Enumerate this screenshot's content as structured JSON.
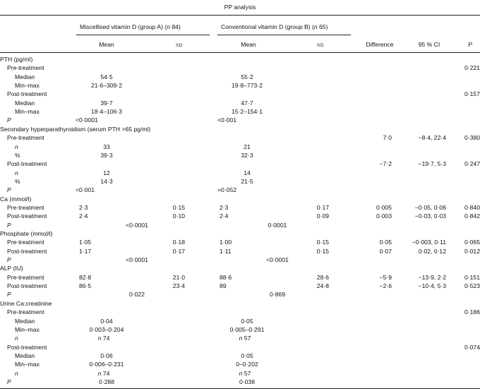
{
  "header": {
    "title": "PP analysis",
    "group_a": "Miscellised vitamin D (group A) (n 84)",
    "group_b": "Conventional vitamin D (group B) (n 65)",
    "mean": "Mean",
    "sd": "SD",
    "difference": "Difference",
    "ci": "95 % CI",
    "p": "P"
  },
  "rows": [
    {
      "label": "PTH (pg/ml)",
      "indent": 0
    },
    {
      "label": "Pre-treatment",
      "indent": 1,
      "p": "0·221"
    },
    {
      "label": "Median",
      "indent": 2,
      "a_center": "54·5",
      "b_center": "55·2"
    },
    {
      "label": "Min–max",
      "indent": 2,
      "a_center": "21·6–309·2",
      "b_center": "19·8–773·2"
    },
    {
      "label": "Post-treatment",
      "indent": 1,
      "p": "0·157"
    },
    {
      "label": "Median",
      "indent": 2,
      "a_center": "39·7",
      "b_center": "47·7"
    },
    {
      "label": "Min–max",
      "indent": 2,
      "a_center": "18·4–106·3",
      "b_center": "15·2–154·1"
    },
    {
      "label": "P",
      "indent": 1,
      "italic": true,
      "a_left": "<0·0001",
      "b_left": "<0·001"
    },
    {
      "label": "Secondary hyperparathyroidism (serum PTH >65 pg/ml)",
      "indent": 0
    },
    {
      "label": "Pre-treatment",
      "indent": 1,
      "diff": "7·0",
      "ci": "−8·4, 22·4",
      "p": "0·380"
    },
    {
      "label": "n",
      "indent": 2,
      "italic": true,
      "a_center": "33",
      "b_center": "21"
    },
    {
      "label": "%",
      "indent": 2,
      "a_center": "39·3",
      "b_center": "32·3"
    },
    {
      "label": "Post-treatment",
      "indent": 1,
      "diff": "−7·2",
      "ci": "−19·7, 5·3",
      "p": "0·247"
    },
    {
      "label": "n",
      "indent": 2,
      "italic": true,
      "a_center": "12",
      "b_center": "14"
    },
    {
      "label": "%",
      "indent": 2,
      "a_center": "14·3",
      "b_center": "21·5"
    },
    {
      "label": "P",
      "indent": 1,
      "italic": true,
      "a_left": "<0·001",
      "b_left": "=0·052"
    },
    {
      "label": "Ca (mmol/l)",
      "indent": 0
    },
    {
      "label": "Pre-treatment",
      "indent": 1,
      "a_mean": "2·3",
      "a_sd": "0·15",
      "b_mean": "2·3",
      "b_sd": "0·17",
      "diff": "0·005",
      "ci": "−0·05, 0·06",
      "p": "0·840"
    },
    {
      "label": "Post-treatment",
      "indent": 1,
      "a_mean": "2·4",
      "a_sd": "0·10",
      "b_mean": "2·4",
      "b_sd": "0·09",
      "diff": "0·003",
      "ci": "−0·03, 0·03",
      "p": "0·842"
    },
    {
      "label": "P",
      "indent": 1,
      "italic": true,
      "a_mid": "<0·0001",
      "b_mid": "0·0001"
    },
    {
      "label": "Phosphate (mmol/l)",
      "indent": 0
    },
    {
      "label": "Pre-treatment",
      "indent": 1,
      "a_mean": "1·05",
      "a_sd": "0·18",
      "b_mean": "1·00",
      "b_sd": "0·15",
      "diff": "0·05",
      "ci": "−0·003, 0·11",
      "p": "0·065"
    },
    {
      "label": "Post-treatment",
      "indent": 1,
      "a_mean": "1·17",
      "a_sd": "0·17",
      "b_mean": "1·11",
      "b_sd": "0·15",
      "diff": "0·07",
      "ci": "0·02, 0·12",
      "p": "0·012"
    },
    {
      "label": "P",
      "indent": 1,
      "italic": true,
      "a_mid": "<0·0001",
      "b_mid": "<0·0001"
    },
    {
      "label": "ALP (IU)",
      "indent": 0
    },
    {
      "label": "Pre-treatment",
      "indent": 1,
      "a_mean": "82·8",
      "a_sd": "21·0",
      "b_mean": "88·6",
      "b_sd": "28·6",
      "diff": "−5·9",
      "ci": "−13·9, 2·2",
      "p": "0·151"
    },
    {
      "label": "Post-treatment",
      "indent": 1,
      "a_mean": "86·5",
      "a_sd": "23·4",
      "b_mean": "89",
      "b_sd": "24·8",
      "diff": "−2·6",
      "ci": "−10·4, 5·3",
      "p": "0·523"
    },
    {
      "label": "P",
      "indent": 1,
      "italic": true,
      "a_mid": "0·022",
      "b_mid": "0·869"
    },
    {
      "label": "Urine Ca:creatinine",
      "indent": 0
    },
    {
      "label": "Pre-treatment",
      "indent": 1,
      "p": "0·186"
    },
    {
      "label": "Median",
      "indent": 2,
      "a_center": "0·04",
      "b_center": "0·05"
    },
    {
      "label": "Min–max",
      "indent": 2,
      "a_center": "0·003–0·204",
      "b_center": "0·005–0·291"
    },
    {
      "label": "n",
      "indent": 2,
      "italic": true,
      "a_center_n": "74",
      "b_center_n": "57"
    },
    {
      "label": "Post-treatment",
      "indent": 1,
      "p": "0·074"
    },
    {
      "label": "Median",
      "indent": 2,
      "a_center": "0·06",
      "b_center": "0·05"
    },
    {
      "label": "Min–max",
      "indent": 2,
      "a_center": "0·006–0·231",
      "b_center": "0–0·202"
    },
    {
      "label": "n",
      "indent": 2,
      "italic": true,
      "a_center_n": "74",
      "b_center_n": "57"
    },
    {
      "label": "P",
      "indent": 1,
      "italic": true,
      "a_center": "0·288",
      "b_center": "0·038"
    }
  ]
}
